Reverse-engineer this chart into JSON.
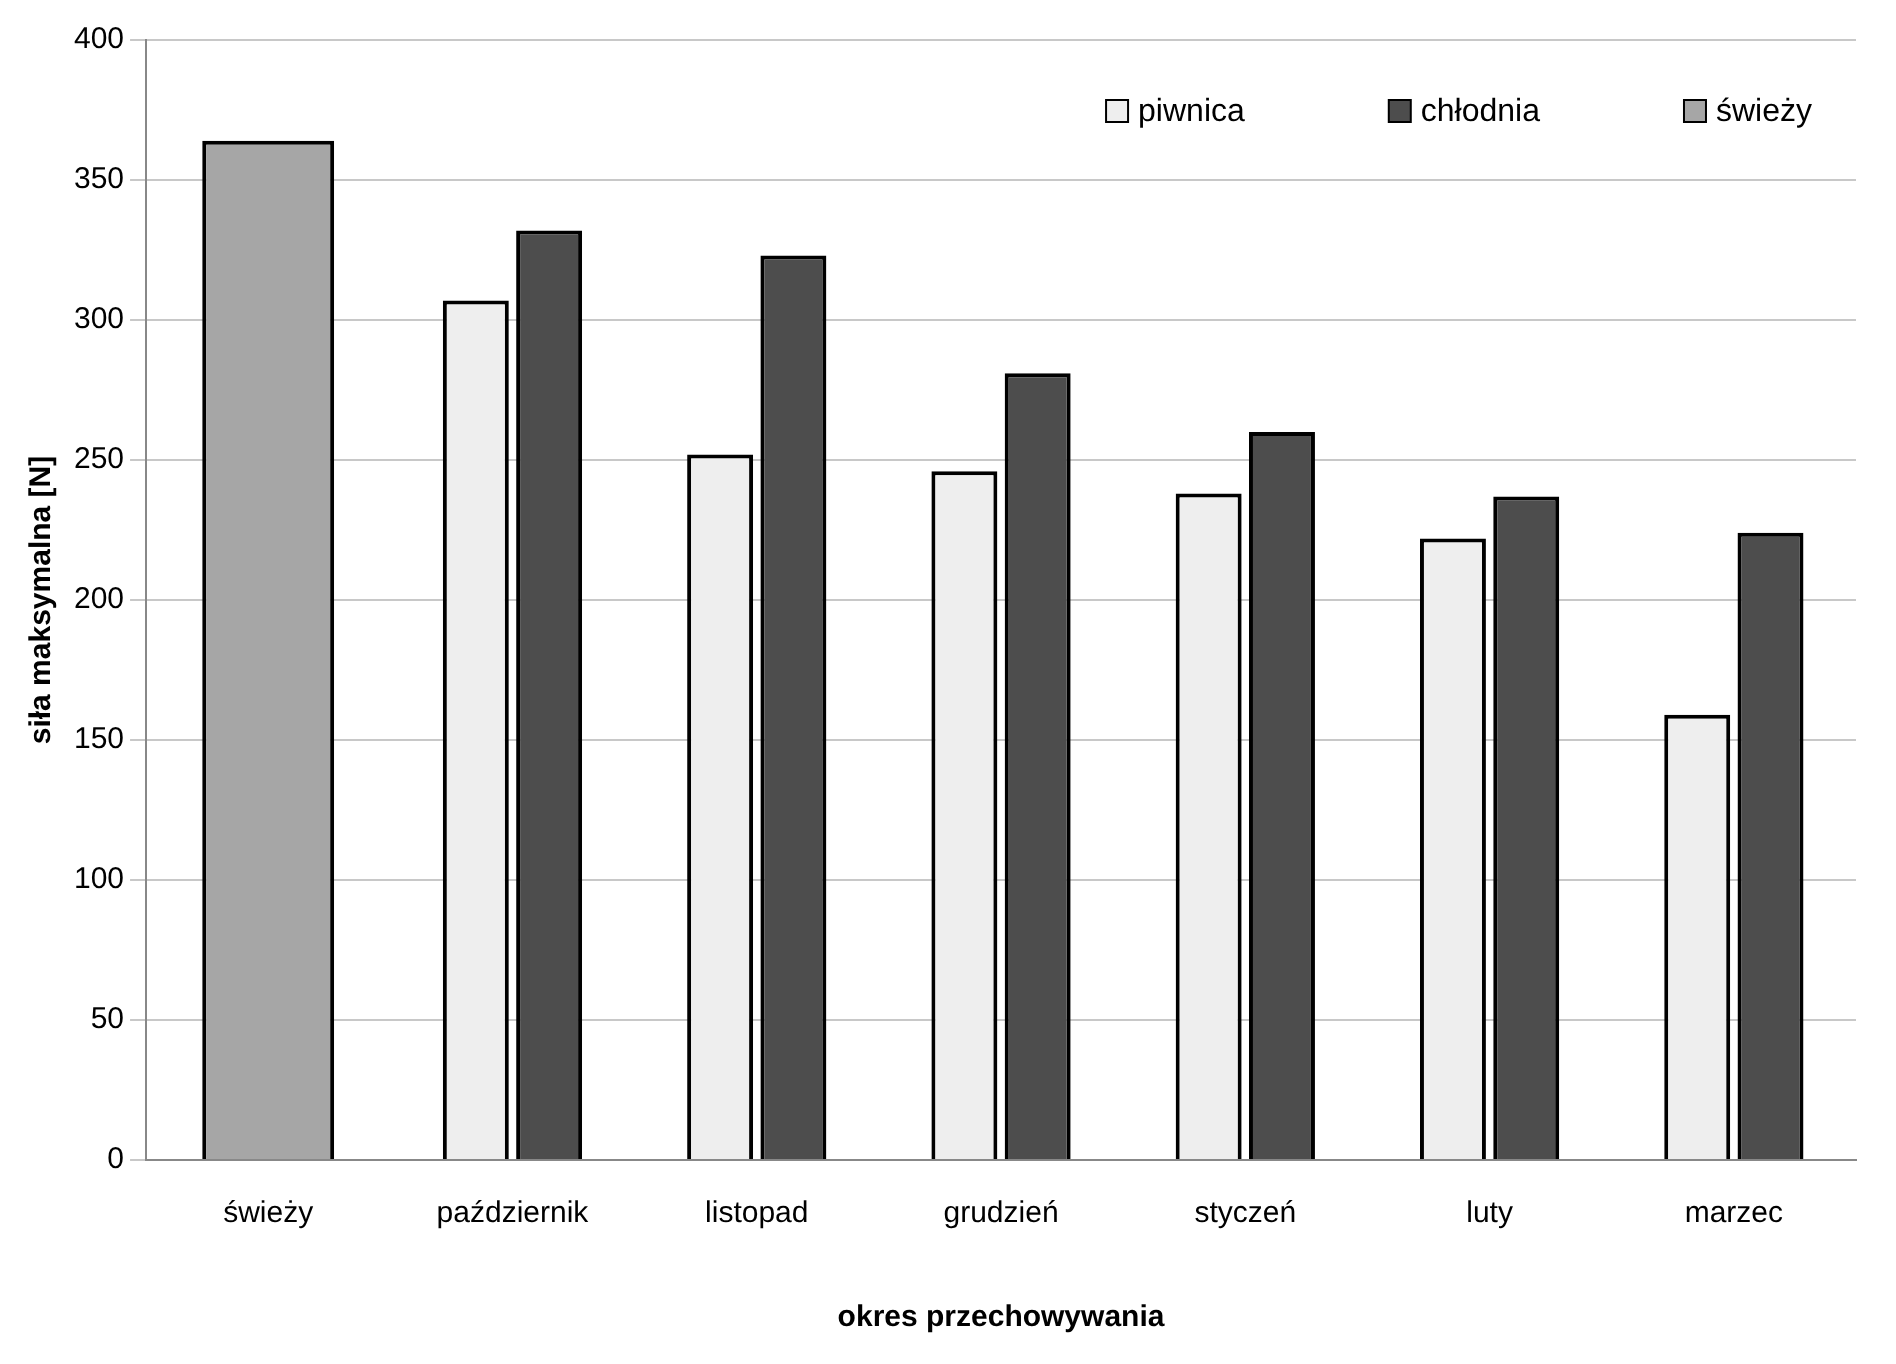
{
  "chart_data": {
    "type": "bar",
    "xlabel": "okres przechowywania",
    "ylabel": "siła maksymalna [N]",
    "categories": [
      "świeży",
      "październik",
      "listopad",
      "grudzień",
      "styczeń",
      "luty",
      "marzec"
    ],
    "series": [
      {
        "name": "piwnica",
        "color": "#eeeeee",
        "values": [
          null,
          307,
          252,
          246,
          238,
          222,
          159
        ]
      },
      {
        "name": "chłodnia",
        "color": "#4d4d4d",
        "values": [
          null,
          332,
          323,
          281,
          260,
          237,
          224
        ]
      },
      {
        "name": "świeży",
        "color": "#a6a6a6",
        "values": [
          364,
          null,
          null,
          null,
          null,
          null,
          null
        ]
      }
    ],
    "ylim": [
      0,
      400
    ],
    "yticks": [
      0,
      50,
      100,
      150,
      200,
      250,
      300,
      350,
      400
    ],
    "grid": "y",
    "legend": "top right"
  }
}
